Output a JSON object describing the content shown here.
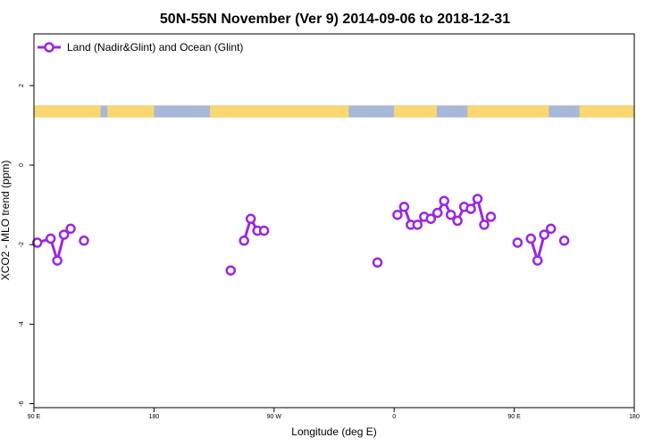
{
  "chart_data": {
    "type": "line",
    "title": "50N-55N November (Ver 9)   2014-09-06 to 2018-12-31",
    "xlabel": "Longitude (deg E)",
    "ylabel": "XCO2 - MLO trend (ppm)",
    "xlim": [
      90,
      450
    ],
    "ylim": [
      -6.1,
      3.3
    ],
    "x_ticks": [
      {
        "value": 90,
        "label": "90 E"
      },
      {
        "value": 180,
        "label": "180"
      },
      {
        "value": 270,
        "label": "90 W"
      },
      {
        "value": 360,
        "label": "0"
      },
      {
        "value": 450,
        "label": "90 E"
      },
      {
        "value": 540,
        "label": "180"
      }
    ],
    "y_ticks": [
      {
        "value": -6,
        "label": "-6"
      },
      {
        "value": -4,
        "label": "-4"
      },
      {
        "value": -2,
        "label": "-2"
      },
      {
        "value": 0,
        "label": "0"
      },
      {
        "value": 2,
        "label": "2"
      }
    ],
    "legend_position": "top-left",
    "series": [
      {
        "name": "Land (Nadir&Glint) and Ocean (Glint)",
        "color": "#9a27e0",
        "segments": [
          [
            [
              92.5,
              -1.95
            ],
            [
              102.5,
              -1.85
            ],
            [
              107.5,
              -2.4
            ],
            [
              112.5,
              -1.75
            ],
            [
              117.5,
              -1.6
            ]
          ],
          [
            [
              127.5,
              -1.9
            ]
          ],
          [
            [
              237.5,
              -2.65
            ]
          ],
          [
            [
              247.5,
              -1.9
            ],
            [
              252.5,
              -1.35
            ],
            [
              257.5,
              -1.65
            ],
            [
              262.5,
              -1.65
            ]
          ],
          [
            [
              347.5,
              -2.45
            ]
          ],
          [
            [
              362.5,
              -1.25
            ],
            [
              367.5,
              -1.05
            ],
            [
              372.5,
              -1.5
            ],
            [
              377.5,
              -1.5
            ],
            [
              382.5,
              -1.3
            ],
            [
              387.5,
              -1.35
            ],
            [
              392.5,
              -1.2
            ],
            [
              397.5,
              -0.9
            ],
            [
              402.5,
              -1.25
            ],
            [
              407.5,
              -1.4
            ],
            [
              412.5,
              -1.05
            ],
            [
              417.5,
              -1.1
            ],
            [
              422.5,
              -0.85
            ],
            [
              427.5,
              -1.5
            ],
            [
              432.5,
              -1.3
            ]
          ],
          [
            [
              452.5,
              -1.95
            ]
          ],
          [
            [
              462.5,
              -1.85
            ],
            [
              467.5,
              -2.4
            ],
            [
              472.5,
              -1.75
            ],
            [
              477.5,
              -1.6
            ]
          ],
          [
            [
              487.5,
              -1.9
            ]
          ]
        ]
      }
    ],
    "land_ocean_band": {
      "land_color": "#fad771",
      "ocean_color": "#a7b8d8",
      "y_range": [
        1.2,
        1.5
      ],
      "land_intervals": [
        [
          90,
          140
        ],
        [
          145,
          180
        ],
        [
          222,
          326
        ],
        [
          360,
          392
        ],
        [
          415,
          476
        ],
        [
          499,
          540
        ]
      ]
    }
  }
}
